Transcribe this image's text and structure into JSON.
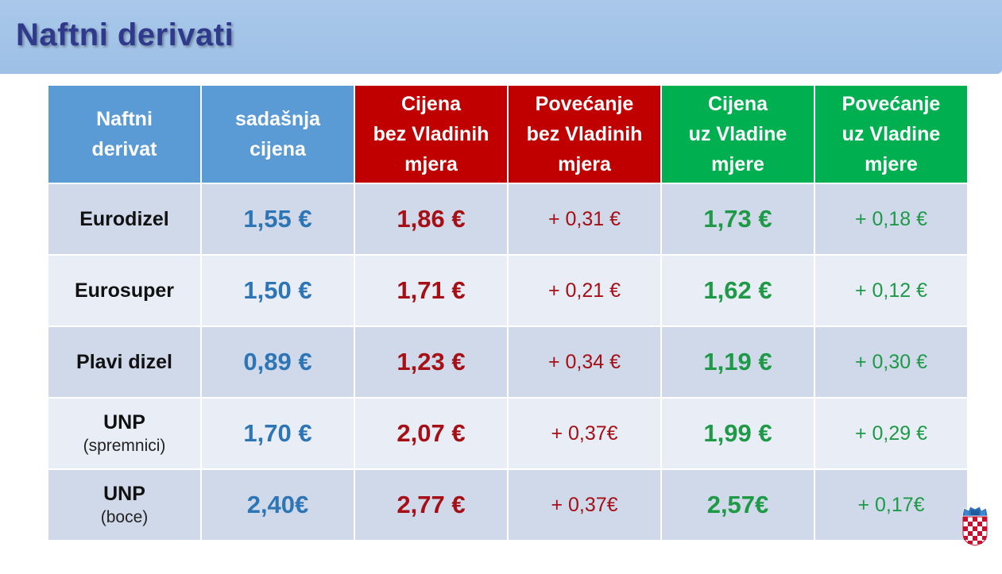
{
  "title": "Naftni derivati",
  "headers": [
    [
      "Naftni",
      "derivat"
    ],
    [
      "sadašnja",
      "cijena"
    ],
    [
      "Cijena",
      "bez Vladinih",
      "mjera"
    ],
    [
      "Povećanje",
      "bez Vladinih",
      "mjera"
    ],
    [
      "Cijena",
      "uz Vladine",
      "mjere"
    ],
    [
      "Povećanje",
      "uz Vladine",
      "mjere"
    ]
  ],
  "header_colors": {
    "blue": "#5b9bd5",
    "red": "#c00000",
    "green": "#00b050"
  },
  "rows": [
    {
      "name": "Eurodizel",
      "sub": "",
      "current": "1,55 €",
      "price_without": "1,86 €",
      "increase_without": "+ 0,31 €",
      "price_with": "1,73 €",
      "increase_with": "+ 0,18 €"
    },
    {
      "name": "Eurosuper",
      "sub": "",
      "current": "1,50 €",
      "price_without": "1,71 €",
      "increase_without": "+ 0,21 €",
      "price_with": "1,62 €",
      "increase_with": "+ 0,12 €"
    },
    {
      "name": "Plavi dizel",
      "sub": "",
      "current": "0,89 €",
      "price_without": "1,23 €",
      "increase_without": "+ 0,34 €",
      "price_with": "1,19 €",
      "increase_with": "+ 0,30 €"
    },
    {
      "name": "UNP",
      "sub": "(spremnici)",
      "current": "1,70 €",
      "price_without": "2,07 €",
      "increase_without": "+ 0,37€",
      "price_with": "1,99 €",
      "increase_with": "+ 0,29 €"
    },
    {
      "name": "UNP",
      "sub": "(boce)",
      "current": "2,40€",
      "price_without": "2,77 €",
      "increase_without": "+ 0,37€",
      "price_with": "2,57€",
      "increase_with": "+ 0,17€"
    }
  ],
  "logo": "croatian-coat-of-arms-icon"
}
